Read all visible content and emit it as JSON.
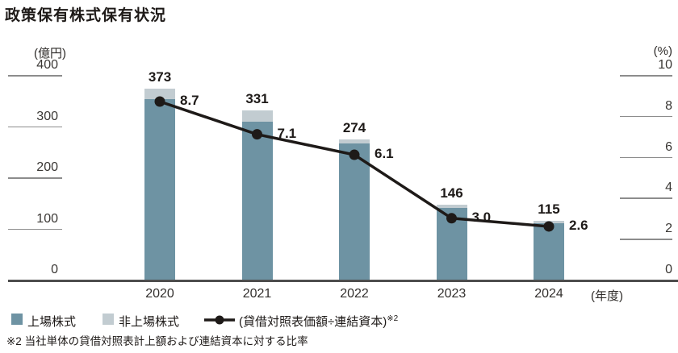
{
  "title": "政策保有株式保有状況",
  "chart_data": {
    "type": "bar",
    "variant": "stacked-bars-with-line-overlay",
    "categories": [
      "2020",
      "2021",
      "2022",
      "2023",
      "2024"
    ],
    "bar_totals": [
      373,
      331,
      274,
      146,
      115
    ],
    "series": [
      {
        "name": "上場株式",
        "values": [
          353,
          309,
          266,
          140,
          110
        ]
      },
      {
        "name": "非上場株式",
        "values": [
          20,
          22,
          8,
          6,
          5
        ]
      }
    ],
    "line": {
      "name_base": "(貸借対照表価額÷連結資本)",
      "name_sup": "※2",
      "values": [
        8.7,
        7.1,
        6.1,
        3.0,
        2.6
      ],
      "labels": [
        "8.7",
        "7.1",
        "6.1",
        "3.0",
        "2.6"
      ]
    },
    "left_axis": {
      "unit": "(億円)",
      "ticks": [
        400,
        300,
        200,
        100,
        0
      ],
      "max": 400
    },
    "right_axis": {
      "unit": "(%)",
      "ticks": [
        10,
        8,
        6,
        4,
        2,
        0
      ],
      "max": 10
    },
    "x_axis_suffix": "(年度)",
    "legend_position": "bottom",
    "grid": "short-tick-dashes-only"
  },
  "colors": {
    "bar_listed": "#6e93a3",
    "bar_unlisted": "#c2ccd1",
    "line": "#1e1a18",
    "baseline": "#4d4d4d",
    "tick_line": "#8c8c8c",
    "text": "#1e1a18"
  },
  "footnote": "※2 当社単体の貸借対照表計上額および連結資本に対する比率"
}
